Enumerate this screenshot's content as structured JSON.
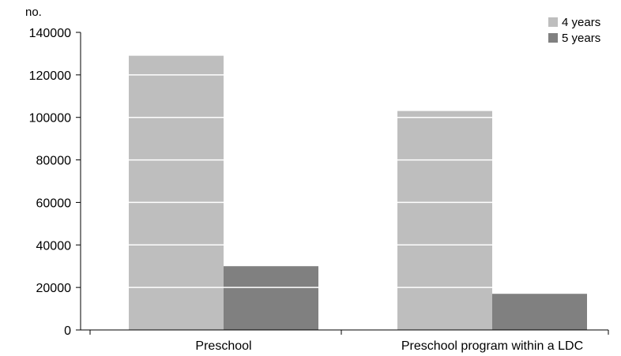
{
  "chart_data": {
    "type": "bar",
    "title": "",
    "xlabel": "",
    "ylabel": "no.",
    "categories": [
      "Preschool",
      "Preschool program within a LDC"
    ],
    "series": [
      {
        "name": "4 years",
        "values": [
          129000,
          103000
        ],
        "color": "#bebebe"
      },
      {
        "name": "5 years",
        "values": [
          30000,
          17000
        ],
        "color": "#808080"
      }
    ],
    "ylim": [
      0,
      140000
    ],
    "yticks": [
      "0",
      "20000",
      "40000",
      "60000",
      "80000",
      "100000",
      "120000",
      "140000"
    ],
    "ytick_values": [
      0,
      20000,
      40000,
      60000,
      80000,
      100000,
      120000,
      140000
    ],
    "grid": "white lines over bars",
    "legend_position": "top-right",
    "axis_color": "#000000",
    "gridline_color": "#ffffff"
  }
}
